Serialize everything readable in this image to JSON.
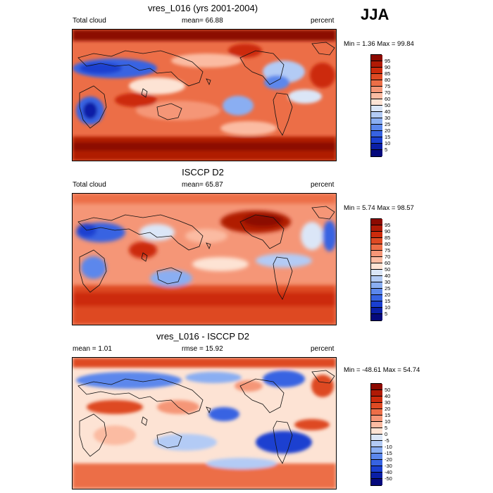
{
  "season": "JJA",
  "panels": [
    {
      "title": "vres_L016 (yrs 2001-2004)",
      "left_label": "Total cloud",
      "center_label": "mean=  66.88",
      "right_label": "percent",
      "minmax": "Min =   1.36 Max =  99.84",
      "colorbar": {
        "levels": [
          "95",
          "90",
          "85",
          "80",
          "75",
          "70",
          "60",
          "50",
          "40",
          "30",
          "25",
          "20",
          "15",
          "10",
          "5"
        ],
        "colors": [
          "#8c0a00",
          "#b01a05",
          "#cc2b0c",
          "#de4a23",
          "#ec6e47",
          "#f59677",
          "#fbbba2",
          "#fde3d4",
          "#dbe6f7",
          "#b3cbf5",
          "#8aaef2",
          "#5b87ec",
          "#3763e2",
          "#1a3fd0",
          "#0a1fa6",
          "#05097c"
        ]
      }
    },
    {
      "title": "ISCCP D2",
      "left_label": "Total cloud",
      "center_label": "mean=  65.87",
      "right_label": "percent",
      "minmax": "Min =   5.74 Max =  98.57",
      "colorbar": {
        "levels": [
          "95",
          "90",
          "85",
          "80",
          "75",
          "70",
          "60",
          "50",
          "40",
          "30",
          "25",
          "20",
          "15",
          "10",
          "5"
        ],
        "colors": [
          "#8c0a00",
          "#b01a05",
          "#cc2b0c",
          "#de4a23",
          "#ec6e47",
          "#f59677",
          "#fbbba2",
          "#fde3d4",
          "#dbe6f7",
          "#b3cbf5",
          "#8aaef2",
          "#5b87ec",
          "#3763e2",
          "#1a3fd0",
          "#0a1fa6",
          "#05097c"
        ]
      }
    },
    {
      "title": "vres_L016 - ISCCP D2",
      "left_label": "mean =   1.01",
      "center_label": "rmse =  15.92",
      "right_label": "percent",
      "minmax": "Min = -48.61 Max =  54.74",
      "colorbar": {
        "levels": [
          "50",
          "40",
          "30",
          "20",
          "15",
          "10",
          "5",
          "0",
          "-5",
          "-10",
          "-15",
          "-20",
          "-30",
          "-40",
          "-50"
        ],
        "colors": [
          "#8c0a00",
          "#b01a05",
          "#cc2b0c",
          "#de4a23",
          "#ec6e47",
          "#f59677",
          "#fbbba2",
          "#fde3d4",
          "#dbe6f7",
          "#b3cbf5",
          "#8aaef2",
          "#5b87ec",
          "#3763e2",
          "#1a3fd0",
          "#0a1fa6",
          "#05097c"
        ]
      }
    }
  ]
}
